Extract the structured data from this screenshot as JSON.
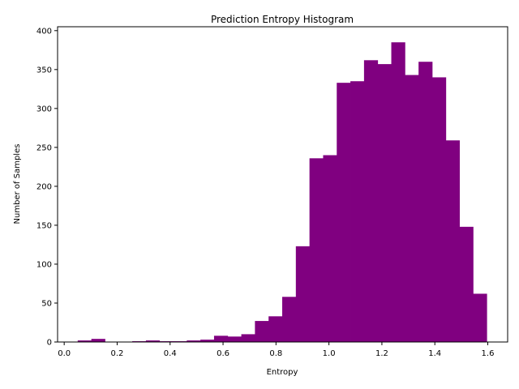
{
  "chart_data": {
    "type": "bar",
    "title": "Prediction Entropy Histogram",
    "xlabel": "Entropy",
    "ylabel": "Number of Samples",
    "bar_color": "#800080",
    "xlim": [
      -0.025,
      1.675
    ],
    "ylim": [
      0,
      405
    ],
    "grid": false,
    "legend": "none",
    "bin_edges": [
      0.051,
      0.1025,
      0.154,
      0.2055,
      0.257,
      0.3085,
      0.36,
      0.4115,
      0.463,
      0.5145,
      0.566,
      0.6175,
      0.669,
      0.7205,
      0.772,
      0.8235,
      0.875,
      0.9265,
      0.978,
      1.0295,
      1.081,
      1.1325,
      1.184,
      1.2355,
      1.287,
      1.3385,
      1.39,
      1.4415,
      1.493,
      1.5445,
      1.596
    ],
    "values": [
      2,
      4,
      0,
      0,
      1,
      2,
      1,
      1,
      2,
      3,
      8,
      7,
      10,
      27,
      33,
      58,
      123,
      236,
      240,
      333,
      335,
      362,
      357,
      385,
      343,
      360,
      340,
      259,
      148,
      62
    ],
    "x_ticks": [
      "0.0",
      "0.2",
      "0.4",
      "0.6",
      "0.8",
      "1.0",
      "1.2",
      "1.4",
      "1.6"
    ],
    "x_tick_values": [
      0,
      0.2,
      0.4,
      0.6,
      0.8,
      1.0,
      1.2,
      1.4,
      1.6
    ],
    "y_ticks": [
      "0",
      "50",
      "100",
      "150",
      "200",
      "250",
      "300",
      "350",
      "400"
    ],
    "y_tick_values": [
      0,
      50,
      100,
      150,
      200,
      250,
      300,
      350,
      400
    ]
  }
}
